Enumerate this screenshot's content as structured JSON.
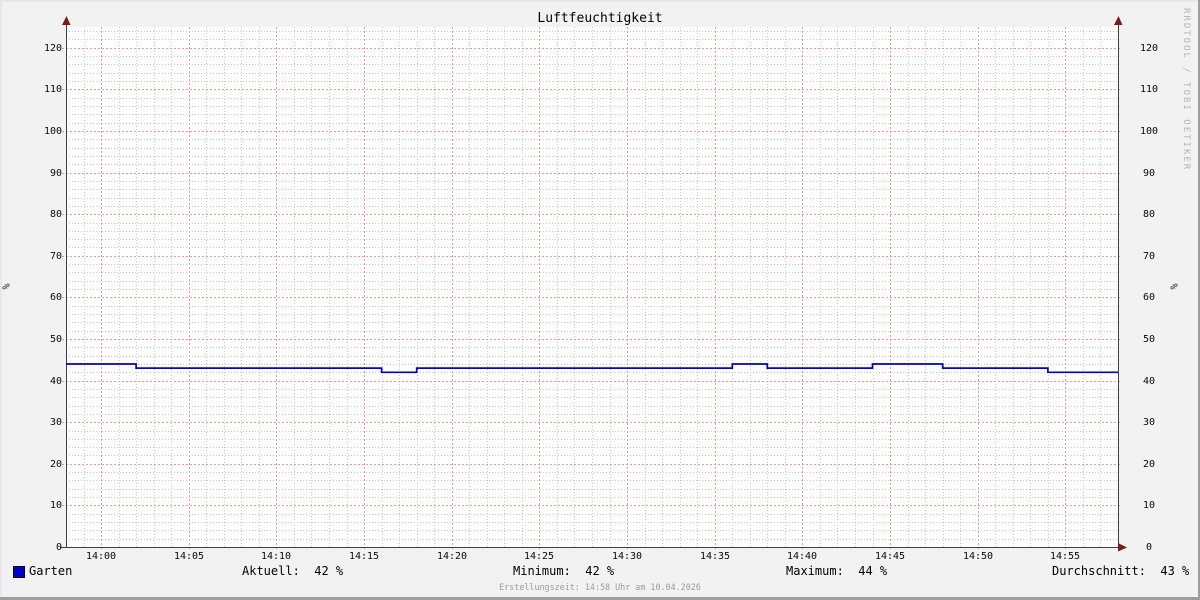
{
  "title": "Luftfeuchtigkeit",
  "rrd_watermark": "RRDTOOL / TOBI OETIKER",
  "footer": "Erstellungszeit: 14:58 Uhr am 10.04.2026",
  "legend": {
    "series_label": "Garten",
    "stats": [
      {
        "name": "aktuell",
        "text": "Aktuell:  42 %"
      },
      {
        "name": "minimum",
        "text": "Minimum:  42 %"
      },
      {
        "name": "maximum",
        "text": "Maximum:  44 %"
      },
      {
        "name": "durchschnitt",
        "text": "Durchschnitt:  43 %"
      }
    ]
  },
  "chart_data": {
    "type": "line",
    "title": "Luftfeuchtigkeit",
    "xlabel": "",
    "ylabel": "%",
    "ylim": [
      0,
      125
    ],
    "y_major_step": 10,
    "y_minor_step": 2,
    "y_tick_labels": [
      0,
      10,
      20,
      30,
      40,
      50,
      60,
      70,
      80,
      90,
      100,
      110,
      120
    ],
    "x_range": [
      "13:58",
      "14:58"
    ],
    "x_major_step_min": 5,
    "x_minor_step_min": 1,
    "x_tick_labels": [
      "14:00",
      "14:05",
      "14:10",
      "14:15",
      "14:20",
      "14:25",
      "14:30",
      "14:35",
      "14:40",
      "14:45",
      "14:50",
      "14:55"
    ],
    "grid": true,
    "legend_position": "bottom",
    "series": [
      {
        "name": "Garten",
        "color": "#0000c8",
        "style": "step",
        "points": [
          {
            "time": "13:58",
            "value": 44
          },
          {
            "time": "14:02",
            "value": 43
          },
          {
            "time": "14:16",
            "value": 42
          },
          {
            "time": "14:18",
            "value": 43
          },
          {
            "time": "14:36",
            "value": 44
          },
          {
            "time": "14:38",
            "value": 43
          },
          {
            "time": "14:44",
            "value": 44
          },
          {
            "time": "14:48",
            "value": 43
          },
          {
            "time": "14:54",
            "value": 42
          },
          {
            "time": "14:58",
            "value": 42
          }
        ],
        "stats": {
          "aktuell": 42,
          "minimum": 42,
          "maximum": 44,
          "durchschnitt": 43
        }
      }
    ],
    "colors": {
      "grid_major": "#f09898",
      "grid_minor": "#c9c9c9",
      "axis": "#3f3f3f",
      "arrow": "#7c1a1a",
      "canvas": "#fefefe",
      "background": "#f2f2f2"
    }
  }
}
